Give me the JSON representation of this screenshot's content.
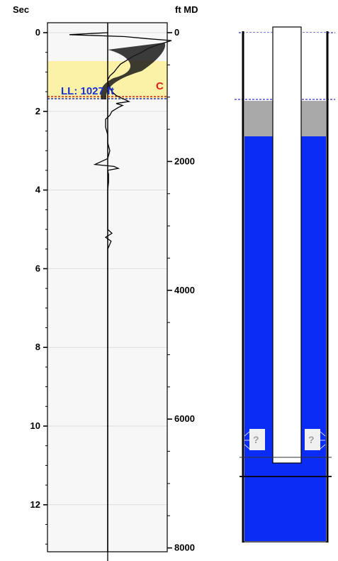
{
  "header": {
    "left_axis_title": "Sec",
    "right_axis_title": "ft MD"
  },
  "left_axis": {
    "tick_labels": [
      "0",
      "2",
      "4",
      "6",
      "8",
      "10",
      "12"
    ],
    "range": [
      -0.2,
      13.2
    ]
  },
  "right_axis": {
    "tick_labels": [
      "0",
      "2000",
      "4000",
      "6000",
      "8000"
    ],
    "range": [
      0,
      8000
    ]
  },
  "markers": {
    "liquid_level_label": "LL: 1027 ft",
    "collar_label": "C",
    "liquid_level_ft": 1027
  },
  "wellbore": {
    "unknown_marker": "?"
  },
  "colors": {
    "trace_background": "#f7f7f7",
    "echo_band": "#fbf2a8",
    "liquid_level_line": "#2a33d8",
    "collar_line": "#e02020",
    "fluid": "#0a2cf5",
    "gas_column": "#a9a9a9",
    "tubing": "#ffffff"
  },
  "chart_data": {
    "type": "line",
    "title": "",
    "xlabel": "",
    "ylabel": "Sec",
    "ylim": [
      0,
      13.5
    ],
    "secondary_ylabel": "ft MD",
    "secondary_ylim": [
      0,
      8000
    ],
    "series": [
      {
        "x": [
          0.0,
          0.05,
          0.1,
          0.15,
          0.2,
          0.3,
          0.4,
          0.5,
          0.6,
          0.7,
          0.8,
          0.9,
          1.0,
          1.1,
          1.2,
          1.3,
          1.4,
          1.5,
          1.6,
          1.7,
          1.75,
          1.8,
          1.85,
          1.9,
          2.0,
          2.1,
          2.2,
          2.4,
          2.6,
          2.8,
          3.0,
          3.2,
          3.3,
          3.35,
          3.4,
          3.45,
          3.5,
          3.6,
          3.8,
          4.0,
          4.3,
          4.6,
          5.0,
          5.1,
          5.2,
          5.3,
          5.5,
          6.0,
          6.5,
          7.0,
          7.1,
          7.5,
          8.0,
          9.0,
          10.0,
          11.0,
          12.0,
          13.0,
          13.5
        ],
        "values": [
          0,
          -0.9,
          0.4,
          0.9,
          1.5,
          1.2,
          0.95,
          0.8,
          0.6,
          0.45,
          0.3,
          0.22,
          0.15,
          0.05,
          0.0,
          0.02,
          0.05,
          0.1,
          0.2,
          0.4,
          0.5,
          0.2,
          0.35,
          0.25,
          0.1,
          0.05,
          -0.05,
          -0.05,
          0.0,
          0.0,
          0.05,
          0.0,
          -0.2,
          -0.3,
          0.15,
          0.25,
          0.0,
          0.02,
          0.02,
          0.0,
          0.0,
          0.0,
          0.0,
          0.1,
          -0.05,
          0.08,
          0.0,
          0.0,
          0.0,
          0.0,
          0.0,
          0.0,
          0.0,
          0.0,
          0.0,
          0.0,
          0.0,
          0.0,
          0.0
        ]
      }
    ]
  }
}
